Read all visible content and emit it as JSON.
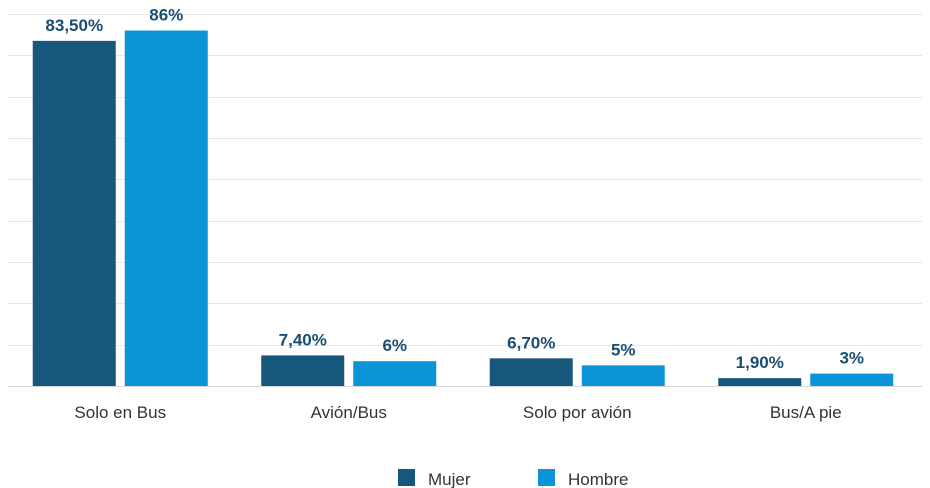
{
  "chart_data": {
    "type": "bar",
    "categories": [
      "Solo en Bus",
      "Avión/Bus",
      "Solo por avión",
      "Bus/A pie"
    ],
    "series": [
      {
        "name": "Mujer",
        "values": [
          83.5,
          7.4,
          6.7,
          1.9
        ],
        "labels": [
          "83,50%",
          "7,40%",
          "6,70%",
          "1,90%"
        ],
        "color": "#17577c"
      },
      {
        "name": "Hombre",
        "values": [
          86,
          6,
          5,
          3
        ],
        "labels": [
          "86%",
          "6%",
          "5%",
          "3%"
        ],
        "color": "#0b94d6"
      }
    ],
    "ylim": [
      0,
      90
    ],
    "grid": true,
    "legend_position": "bottom-center",
    "label_color": "#1b4e72"
  }
}
